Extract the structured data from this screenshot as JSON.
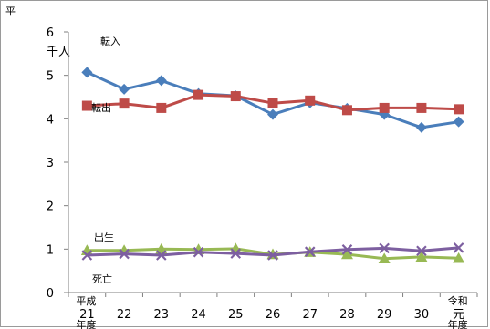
{
  "chart_data": {
    "type": "line",
    "corner_label": "平",
    "unit_label": "千人",
    "x_labels": [
      {
        "top": "平成",
        "mid": "21",
        "bottom": "年度"
      },
      {
        "top": "",
        "mid": "22",
        "bottom": ""
      },
      {
        "top": "",
        "mid": "23",
        "bottom": ""
      },
      {
        "top": "",
        "mid": "24",
        "bottom": ""
      },
      {
        "top": "",
        "mid": "25",
        "bottom": ""
      },
      {
        "top": "",
        "mid": "26",
        "bottom": ""
      },
      {
        "top": "",
        "mid": "27",
        "bottom": ""
      },
      {
        "top": "",
        "mid": "28",
        "bottom": ""
      },
      {
        "top": "",
        "mid": "29",
        "bottom": ""
      },
      {
        "top": "",
        "mid": "30",
        "bottom": ""
      },
      {
        "top": "令和",
        "mid": "元",
        "bottom": "年度"
      }
    ],
    "y_ticks": [
      "0",
      "1",
      "2",
      "3",
      "4",
      "5",
      "6"
    ],
    "ylim": [
      0,
      6
    ],
    "grid": false,
    "series": [
      {
        "name": "転入",
        "color": "#4a7ebb",
        "marker": "diamond",
        "values": [
          5.07,
          4.68,
          4.88,
          4.58,
          4.53,
          4.1,
          4.37,
          4.24,
          4.1,
          3.8,
          3.93
        ]
      },
      {
        "name": "転出",
        "color": "#be4b48",
        "marker": "square",
        "values": [
          4.3,
          4.35,
          4.25,
          4.55,
          4.52,
          4.36,
          4.42,
          4.2,
          4.25,
          4.25,
          4.22
        ]
      },
      {
        "name": "出生",
        "color": "#98b954",
        "marker": "triangle",
        "values": [
          0.97,
          0.97,
          1.0,
          0.99,
          1.01,
          0.88,
          0.93,
          0.88,
          0.78,
          0.82,
          0.79
        ]
      },
      {
        "name": "死亡",
        "color": "#7d5fa0",
        "marker": "x",
        "values": [
          0.86,
          0.89,
          0.86,
          0.93,
          0.9,
          0.86,
          0.94,
          0.99,
          1.02,
          0.96,
          1.03
        ]
      }
    ]
  }
}
